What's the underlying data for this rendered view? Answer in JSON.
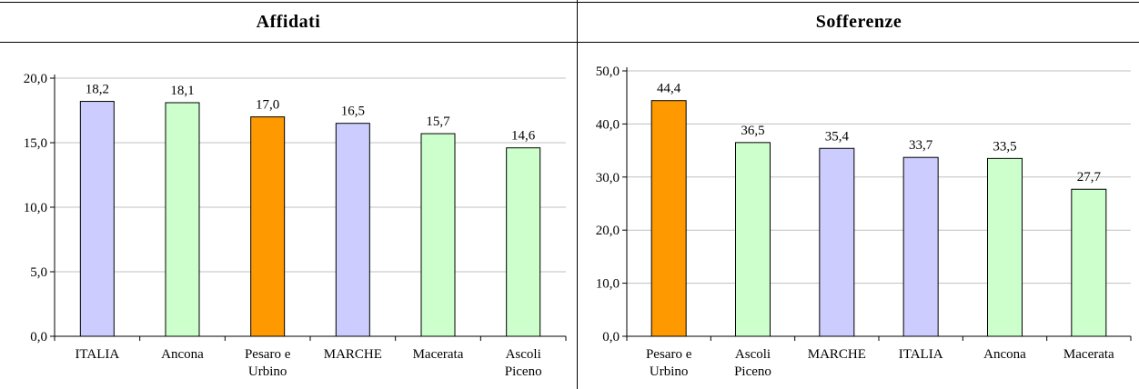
{
  "colors": {
    "lavender": "#ccccff",
    "green": "#ccffcc",
    "orange": "#ff9900"
  },
  "chart_data": [
    {
      "type": "bar",
      "title": "Affidati",
      "categories": [
        [
          "ITALIA"
        ],
        [
          "Ancona"
        ],
        [
          "Pesaro e",
          "Urbino"
        ],
        [
          "MARCHE"
        ],
        [
          "Macerata"
        ],
        [
          "Ascoli",
          "Piceno"
        ]
      ],
      "values": [
        18.2,
        18.1,
        17.0,
        16.5,
        15.7,
        14.6
      ],
      "value_labels": [
        "18,2",
        "18,1",
        "17,0",
        "16,5",
        "15,7",
        "14,6"
      ],
      "bar_colors": [
        "lavender",
        "green",
        "orange",
        "lavender",
        "green",
        "green"
      ],
      "ylim": [
        0,
        20
      ],
      "yticks": [
        0,
        5,
        10,
        15,
        20
      ],
      "ytick_labels": [
        "0,0",
        "5,0",
        "10,0",
        "15,0",
        "20,0"
      ],
      "grid": true,
      "legend": "none"
    },
    {
      "type": "bar",
      "title": "Sofferenze",
      "categories": [
        [
          "Pesaro e",
          "Urbino"
        ],
        [
          "Ascoli",
          "Piceno"
        ],
        [
          "MARCHE"
        ],
        [
          "ITALIA"
        ],
        [
          "Ancona"
        ],
        [
          "Macerata"
        ]
      ],
      "values": [
        44.4,
        36.5,
        35.4,
        33.7,
        33.5,
        27.7
      ],
      "value_labels": [
        "44,4",
        "36,5",
        "35,4",
        "33,7",
        "33,5",
        "27,7"
      ],
      "bar_colors": [
        "orange",
        "green",
        "lavender",
        "lavender",
        "green",
        "green"
      ],
      "ylim": [
        0,
        50
      ],
      "yticks": [
        0,
        10,
        20,
        30,
        40,
        50
      ],
      "ytick_labels": [
        "0,0",
        "10,0",
        "20,0",
        "30,0",
        "40,0",
        "50,0"
      ],
      "grid": true,
      "legend": "none"
    }
  ]
}
